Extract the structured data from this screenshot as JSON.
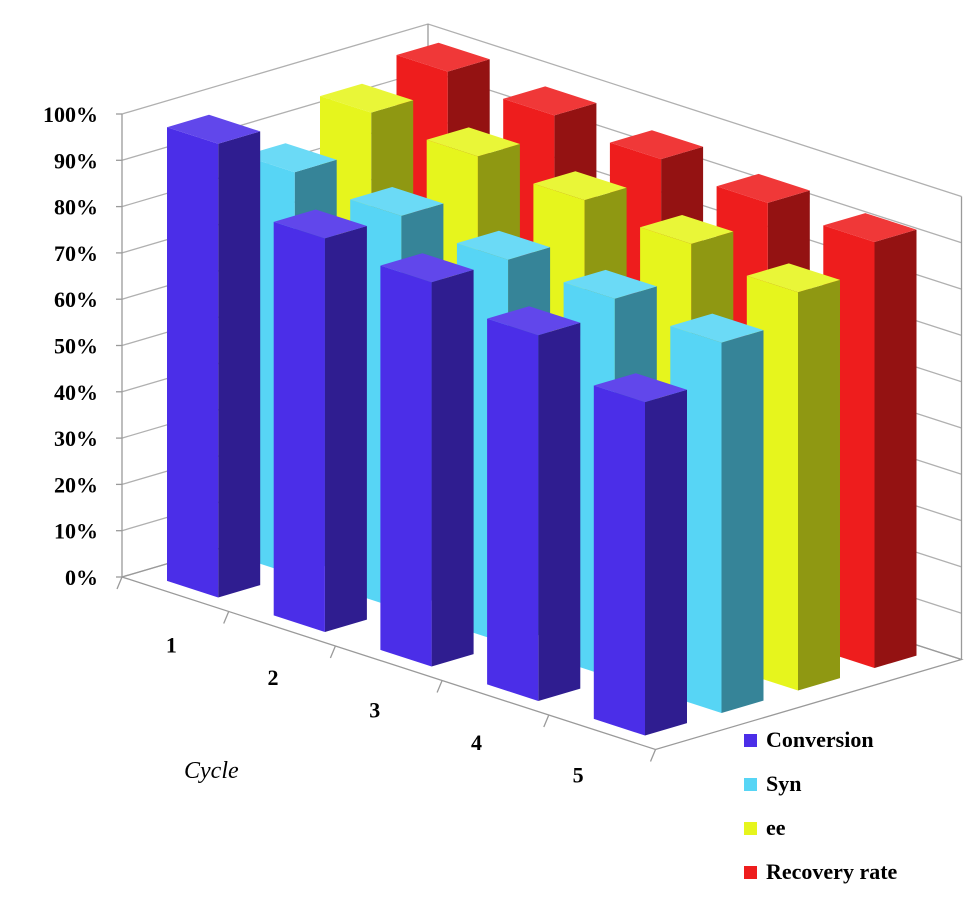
{
  "chart_data": {
    "type": "bar",
    "variant": "3d-column",
    "categories": [
      "1",
      "2",
      "3",
      "4",
      "5"
    ],
    "xlabel": "Cycle",
    "ylabel": "",
    "ylim": [
      0,
      1
    ],
    "yticks": [
      "0%",
      "10%",
      "20%",
      "30%",
      "40%",
      "50%",
      "60%",
      "70%",
      "80%",
      "90%",
      "100%"
    ],
    "grid": true,
    "legend": "bottom-right",
    "series": [
      {
        "name": "Conversion",
        "color": "#4b2ee8",
        "values": [
          0.98,
          0.85,
          0.83,
          0.79,
          0.72
        ]
      },
      {
        "name": "Syn",
        "color": "#57d5f5",
        "values": [
          0.87,
          0.85,
          0.83,
          0.82,
          0.8
        ]
      },
      {
        "name": "ee",
        "color": "#e6f51d",
        "values": [
          0.95,
          0.93,
          0.91,
          0.89,
          0.86
        ]
      },
      {
        "name": "Recovery rate",
        "color": "#ee1d1d",
        "values": [
          0.99,
          0.97,
          0.95,
          0.93,
          0.92
        ]
      }
    ]
  }
}
